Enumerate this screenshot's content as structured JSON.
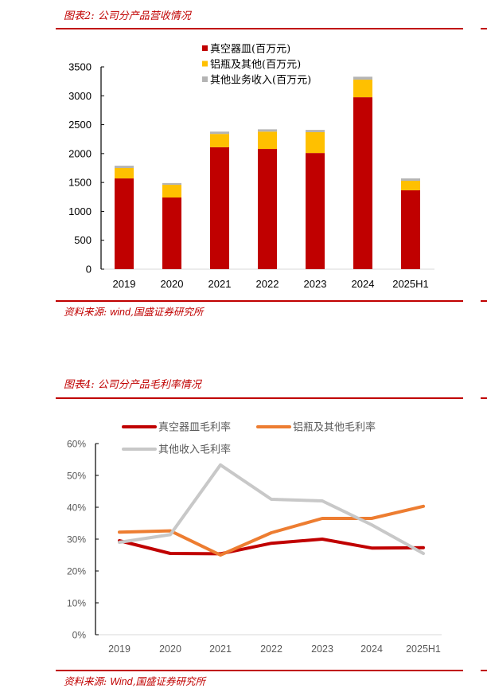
{
  "figure2": {
    "title": "图表2:  公司分产品营收情况",
    "source_prefix": "资料来源:",
    "source_wind": "wind",
    "source_suffix": ",国盛证券研究所"
  },
  "figure4": {
    "title": "图表4:  公司分产品毛利率情况",
    "source_prefix": "资料来源:",
    "source_wind": "Wind",
    "source_suffix": ",国盛证券研究所"
  },
  "colors": {
    "accent": "#c00000",
    "vacuum_bar": "#c00000",
    "aluminum_bar": "#ffc000",
    "other_bar": "#b4b4b4",
    "vacuum_line": "#c00000",
    "aluminum_line": "#ed7d31",
    "other_line": "#c8c8c8"
  },
  "chart_data": [
    {
      "type": "bar",
      "stacked": true,
      "title": "公司分产品营收情况",
      "xlabel": "",
      "ylabel": "",
      "ylim": [
        0,
        3500
      ],
      "yticks": [
        0,
        500,
        1000,
        1500,
        2000,
        2500,
        3000,
        3500
      ],
      "grid": false,
      "legend_position": "top-right",
      "categories": [
        "2019",
        "2020",
        "2021",
        "2022",
        "2023",
        "2024",
        "2025H1"
      ],
      "series": [
        {
          "name": "真空器皿(百万元)",
          "color": "#c00000",
          "values": [
            1570,
            1240,
            2110,
            2080,
            2010,
            2975,
            1365
          ]
        },
        {
          "name": "铝瓶及其他(百万元)",
          "color": "#ffc000",
          "values": [
            180,
            220,
            230,
            300,
            360,
            305,
            165
          ]
        },
        {
          "name": "其他业务收入(百万元)",
          "color": "#b4b4b4",
          "values": [
            40,
            30,
            40,
            40,
            40,
            50,
            40
          ]
        }
      ]
    },
    {
      "type": "line",
      "title": "公司分产品毛利率情况",
      "xlabel": "",
      "ylabel": "",
      "ylim": [
        0,
        60
      ],
      "yticks": [
        "0%",
        "10%",
        "20%",
        "30%",
        "40%",
        "50%",
        "60%"
      ],
      "grid": false,
      "legend_position": "top",
      "categories": [
        "2019",
        "2020",
        "2021",
        "2022",
        "2023",
        "2024",
        "2025H1"
      ],
      "series": [
        {
          "name": "真空器皿毛利率",
          "color": "#c00000",
          "values": [
            29.5,
            25.5,
            25.4,
            28.7,
            30.0,
            27.2,
            27.3
          ]
        },
        {
          "name": "铝瓶及其他毛利率",
          "color": "#ed7d31",
          "values": [
            32.2,
            32.6,
            25.0,
            32.0,
            36.5,
            36.5,
            40.3
          ]
        },
        {
          "name": "其他收入毛利率",
          "color": "#c8c8c8",
          "values": [
            29.0,
            31.4,
            53.3,
            42.5,
            42.0,
            34.5,
            25.5
          ]
        }
      ]
    }
  ]
}
